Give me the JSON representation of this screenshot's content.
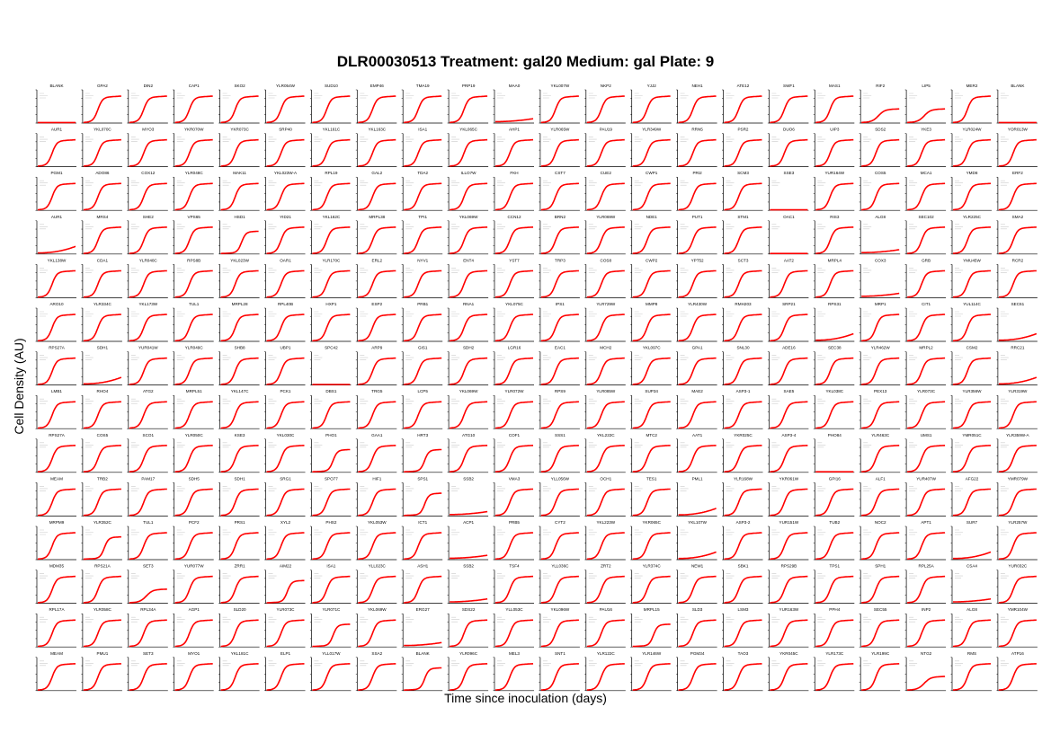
{
  "chart_data": {
    "type": "scatter",
    "title": "DLR00030513 Treatment: gal20 Medium: gal Plate: 9",
    "xlabel": "Time since inoculation (days)",
    "ylabel": "Cell Density (AU)",
    "rows": 14,
    "cols": 22,
    "series_color": "#ff0000",
    "curve_shapes": {
      "S": "fast sigmoid growth, early onset, saturating high",
      "D": "delayed sigmoid growth, later onset, saturating high",
      "L": "sigmoid growth saturating at lower density",
      "F": "flat, very low growth",
      "N": "no growth",
      "G": "weak gradual late growth"
    },
    "panels": [
      [
        "BLANK",
        "N"
      ],
      [
        "GPA2",
        "S"
      ],
      [
        "DIN2",
        "S"
      ],
      [
        "CAP1",
        "S"
      ],
      [
        "SKO2",
        "S"
      ],
      [
        "YLR054W",
        "S"
      ],
      [
        "SUD10",
        "S"
      ],
      [
        "EMP46",
        "S"
      ],
      [
        "TMA19",
        "S"
      ],
      [
        "PRP19",
        "S"
      ],
      [
        "MAA0",
        "F"
      ],
      [
        "YKL007W",
        "S"
      ],
      [
        "NKP2",
        "S"
      ],
      [
        "YJJ2",
        "S"
      ],
      [
        "NEH1",
        "S"
      ],
      [
        "ATE12",
        "S"
      ],
      [
        "SWF1",
        "S"
      ],
      [
        "MAS1",
        "S"
      ],
      [
        "RIF2",
        "L"
      ],
      [
        "LIP5",
        "L"
      ],
      [
        "MER2",
        "S"
      ],
      [
        "BLANK",
        "N"
      ],
      [
        "AUR1",
        "S"
      ],
      [
        "YKL070C",
        "S"
      ],
      [
        "MYO3",
        "S"
      ],
      [
        "YKR070W",
        "S"
      ],
      [
        "YKR073C",
        "S"
      ],
      [
        "SRP40",
        "S"
      ],
      [
        "YKL161C",
        "S"
      ],
      [
        "YKL163C",
        "S"
      ],
      [
        "ISA1",
        "S"
      ],
      [
        "YKL065C",
        "S"
      ],
      [
        "AHP1",
        "S"
      ],
      [
        "YLR065W",
        "S"
      ],
      [
        "PAU19",
        "S"
      ],
      [
        "YLR349W",
        "S"
      ],
      [
        "RRN5",
        "S"
      ],
      [
        "PSR2",
        "S"
      ],
      [
        "DUO6",
        "S"
      ],
      [
        "UIP3",
        "S"
      ],
      [
        "SDS2",
        "S"
      ],
      [
        "YKE3",
        "S"
      ],
      [
        "YLR024W",
        "S"
      ],
      [
        "YOR013W",
        "S"
      ],
      [
        "PGM1",
        "S"
      ],
      [
        "ADO86",
        "S"
      ],
      [
        "COX12",
        "S"
      ],
      [
        "YLR048C",
        "S"
      ],
      [
        "MAK11",
        "S"
      ],
      [
        "YKL023W-A",
        "S"
      ],
      [
        "RPL19",
        "S"
      ],
      [
        "GAL2",
        "S"
      ],
      [
        "TDA2",
        "S"
      ],
      [
        "ILLO7W",
        "S"
      ],
      [
        "FKH",
        "S"
      ],
      [
        "CST7",
        "S"
      ],
      [
        "CUE2",
        "S"
      ],
      [
        "CWP1",
        "S"
      ],
      [
        "PRI2",
        "S"
      ],
      [
        "SCM3",
        "S"
      ],
      [
        "SSE3",
        "N"
      ],
      [
        "YUR164W",
        "S"
      ],
      [
        "COS5",
        "S"
      ],
      [
        "MCA1",
        "S"
      ],
      [
        "YMD8",
        "S"
      ],
      [
        "ERF2",
        "S"
      ],
      [
        "AUR1",
        "G"
      ],
      [
        "MRS4",
        "S"
      ],
      [
        "SHE2",
        "S"
      ],
      [
        "VPS65",
        "S"
      ],
      [
        "HSD1",
        "D"
      ],
      [
        "YID21",
        "S"
      ],
      [
        "YKL162C",
        "S"
      ],
      [
        "MRPL38",
        "S"
      ],
      [
        "TPI1",
        "S"
      ],
      [
        "YKL069W",
        "S"
      ],
      [
        "CCN12",
        "S"
      ],
      [
        "BRN2",
        "S"
      ],
      [
        "YLR069W",
        "S"
      ],
      [
        "NDE1",
        "S"
      ],
      [
        "PUT1",
        "S"
      ],
      [
        "STM1",
        "S"
      ],
      [
        "OAC1",
        "N"
      ],
      [
        "RIS3",
        "S"
      ],
      [
        "ALG8",
        "F"
      ],
      [
        "SEC102",
        "S"
      ],
      [
        "YLR225C",
        "S"
      ],
      [
        "SMA2",
        "S"
      ],
      [
        "YKL138W",
        "S"
      ],
      [
        "CDA1",
        "S"
      ],
      [
        "YLR040C",
        "S"
      ],
      [
        "RPS8B",
        "S"
      ],
      [
        "YKL023W",
        "S"
      ],
      [
        "OAR1",
        "S"
      ],
      [
        "YLR170C",
        "S"
      ],
      [
        "ERL2",
        "S"
      ],
      [
        "NYV1",
        "S"
      ],
      [
        "ENT4",
        "S"
      ],
      [
        "YST7",
        "S"
      ],
      [
        "TRP3",
        "S"
      ],
      [
        "COS8",
        "S"
      ],
      [
        "CWP2",
        "S"
      ],
      [
        "YPT52",
        "S"
      ],
      [
        "SCT3",
        "S"
      ],
      [
        "AAT2",
        "S"
      ],
      [
        "MRPL4",
        "S"
      ],
      [
        "COX3",
        "F"
      ],
      [
        "GRB",
        "S"
      ],
      [
        "YMU45W",
        "S"
      ],
      [
        "RCR2",
        "S"
      ],
      [
        "ARO10",
        "S"
      ],
      [
        "YLR334C",
        "S"
      ],
      [
        "YKL173W",
        "S"
      ],
      [
        "TUL1",
        "S"
      ],
      [
        "MRPL28",
        "S"
      ],
      [
        "RPL40B",
        "S"
      ],
      [
        "HXP1",
        "S"
      ],
      [
        "ESP2",
        "S"
      ],
      [
        "PRB1",
        "S"
      ],
      [
        "RNA1",
        "S"
      ],
      [
        "YKL075C",
        "S"
      ],
      [
        "IPS1",
        "S"
      ],
      [
        "YLR729W",
        "S"
      ],
      [
        "MMP8",
        "S"
      ],
      [
        "YLR430W",
        "S"
      ],
      [
        "RMH203",
        "S"
      ],
      [
        "SRP21",
        "S"
      ],
      [
        "RPS31",
        "G"
      ],
      [
        "MRP1",
        "S"
      ],
      [
        "CIT1",
        "S"
      ],
      [
        "YUL114C",
        "S"
      ],
      [
        "SEC61",
        "G"
      ],
      [
        "RPS27A",
        "S"
      ],
      [
        "SDH1",
        "G"
      ],
      [
        "YUR041W",
        "S"
      ],
      [
        "YLR049C",
        "S"
      ],
      [
        "SHB8",
        "S"
      ],
      [
        "UBP1",
        "S"
      ],
      [
        "SPC42",
        "N"
      ],
      [
        "ARP9",
        "S"
      ],
      [
        "GIS1",
        "S"
      ],
      [
        "SDH2",
        "S"
      ],
      [
        "LGR16",
        "S"
      ],
      [
        "EAC1",
        "S"
      ],
      [
        "MCH2",
        "S"
      ],
      [
        "YKL097C",
        "S"
      ],
      [
        "GPA1",
        "S"
      ],
      [
        "SNL30",
        "S"
      ],
      [
        "ADE16",
        "S"
      ],
      [
        "SEC38",
        "S"
      ],
      [
        "YLR462W",
        "S"
      ],
      [
        "MRPL2",
        "S"
      ],
      [
        "CSM2",
        "S"
      ],
      [
        "RRC21",
        "G"
      ],
      [
        "LMB1",
        "S"
      ],
      [
        "RHO4",
        "S"
      ],
      [
        "ATG2",
        "S"
      ],
      [
        "MRPL51",
        "S"
      ],
      [
        "YKL147C",
        "S"
      ],
      [
        "PCK1",
        "S"
      ],
      [
        "DBS1",
        "S"
      ],
      [
        "TRG5",
        "S"
      ],
      [
        "LCP5",
        "S"
      ],
      [
        "YKL069W",
        "S"
      ],
      [
        "YLR072W",
        "S"
      ],
      [
        "RPS9",
        "S"
      ],
      [
        "YLR085W",
        "S"
      ],
      [
        "SUP34",
        "S"
      ],
      [
        "MAE2",
        "S"
      ],
      [
        "ASP3-1",
        "S"
      ],
      [
        "SAE5",
        "S"
      ],
      [
        "YKL038C",
        "S"
      ],
      [
        "PEX13",
        "S"
      ],
      [
        "YLR073C",
        "S"
      ],
      [
        "YLR356W",
        "S"
      ],
      [
        "YLR319W",
        "S"
      ],
      [
        "RPS27A",
        "S"
      ],
      [
        "COS5",
        "S"
      ],
      [
        "SCO1",
        "S"
      ],
      [
        "YLR050C",
        "S"
      ],
      [
        "KSE3",
        "S"
      ],
      [
        "YKL030C",
        "S"
      ],
      [
        "PHO1",
        "D"
      ],
      [
        "GAA1",
        "S"
      ],
      [
        "HRT3",
        "D"
      ],
      [
        "ATG10",
        "S"
      ],
      [
        "COF1",
        "S"
      ],
      [
        "SSS1",
        "S"
      ],
      [
        "YKL222C",
        "S"
      ],
      [
        "MTC2",
        "S"
      ],
      [
        "AAT1",
        "S"
      ],
      [
        "YKR025C",
        "S"
      ],
      [
        "ASP3-4",
        "S"
      ],
      [
        "PHO84",
        "N"
      ],
      [
        "YLR463C",
        "S"
      ],
      [
        "UMS1",
        "S"
      ],
      [
        "YMR051C",
        "S"
      ],
      [
        "YLR359W-A",
        "S"
      ],
      [
        "MEAM",
        "S"
      ],
      [
        "TRB2",
        "S"
      ],
      [
        "PAM17",
        "S"
      ],
      [
        "SDH5",
        "S"
      ],
      [
        "SDH1",
        "S"
      ],
      [
        "SRG1",
        "S"
      ],
      [
        "SPO77",
        "S"
      ],
      [
        "HIF1",
        "S"
      ],
      [
        "SPS1",
        "D"
      ],
      [
        "SSB2",
        "F"
      ],
      [
        "VMA3",
        "S"
      ],
      [
        "YLL056W",
        "S"
      ],
      [
        "OCH1",
        "S"
      ],
      [
        "TES1",
        "S"
      ],
      [
        "PML1",
        "G"
      ],
      [
        "YLR168W",
        "S"
      ],
      [
        "YKR061W",
        "S"
      ],
      [
        "GPI16",
        "S"
      ],
      [
        "ALF1",
        "S"
      ],
      [
        "YUR407W",
        "S"
      ],
      [
        "AFG22",
        "S"
      ],
      [
        "YMR079W",
        "S"
      ],
      [
        "MRPM9",
        "S"
      ],
      [
        "YLR352C",
        "D"
      ],
      [
        "TUL1",
        "S"
      ],
      [
        "PCF2",
        "S"
      ],
      [
        "PRS1",
        "S"
      ],
      [
        "XYL2",
        "S"
      ],
      [
        "PHS2",
        "S"
      ],
      [
        "YKL053W",
        "S"
      ],
      [
        "ICT1",
        "S"
      ],
      [
        "ACP1",
        "F"
      ],
      [
        "PRB5",
        "S"
      ],
      [
        "CYT2",
        "S"
      ],
      [
        "YKL223W",
        "S"
      ],
      [
        "YKR065C",
        "S"
      ],
      [
        "YKL107W",
        "G"
      ],
      [
        "ASP3-2",
        "S"
      ],
      [
        "YUR151W",
        "S"
      ],
      [
        "TUB2",
        "S"
      ],
      [
        "NOC2",
        "S"
      ],
      [
        "APT1",
        "S"
      ],
      [
        "SUR7",
        "G"
      ],
      [
        "YLR257W",
        "S"
      ],
      [
        "MDM35",
        "S"
      ],
      [
        "RPS21A",
        "S"
      ],
      [
        "SET3",
        "L"
      ],
      [
        "YUR077W",
        "S"
      ],
      [
        "ZRR1",
        "S"
      ],
      [
        "AIM22",
        "D"
      ],
      [
        "ISA1",
        "S"
      ],
      [
        "YLL023C",
        "S"
      ],
      [
        "ASH1",
        "S"
      ],
      [
        "SSB2",
        "F"
      ],
      [
        "TSF4",
        "S"
      ],
      [
        "YLL036C",
        "S"
      ],
      [
        "ZRT2",
        "S"
      ],
      [
        "YLR374C",
        "S"
      ],
      [
        "NEW1",
        "S"
      ],
      [
        "SBK1",
        "S"
      ],
      [
        "RPS29B",
        "S"
      ],
      [
        "TPS1",
        "S"
      ],
      [
        "SPH1",
        "S"
      ],
      [
        "RPL25A",
        "S"
      ],
      [
        "CSA4",
        "F"
      ],
      [
        "YUR032C",
        "S"
      ],
      [
        "RPL17A",
        "S"
      ],
      [
        "YLR058C",
        "S"
      ],
      [
        "RPL34A",
        "S"
      ],
      [
        "AGP1",
        "S"
      ],
      [
        "SLD20",
        "S"
      ],
      [
        "YLR073C",
        "S"
      ],
      [
        "YLR071C",
        "D"
      ],
      [
        "YKL069W",
        "S"
      ],
      [
        "ERG27",
        "F"
      ],
      [
        "SDS22",
        "S"
      ],
      [
        "YLL053C",
        "S"
      ],
      [
        "YKL096W",
        "S"
      ],
      [
        "PAU16",
        "S"
      ],
      [
        "MRPL15",
        "D"
      ],
      [
        "SLD3",
        "S"
      ],
      [
        "LSM3",
        "S"
      ],
      [
        "YUR163W",
        "S"
      ],
      [
        "PPH4",
        "S"
      ],
      [
        "SEC55",
        "S"
      ],
      [
        "INP2",
        "S"
      ],
      [
        "ALG8",
        "S"
      ],
      [
        "YMR104W",
        "S"
      ],
      [
        "MEAM",
        "S"
      ],
      [
        "PMU1",
        "S"
      ],
      [
        "SET3",
        "S"
      ],
      [
        "MYO1",
        "S"
      ],
      [
        "YKL181C",
        "S"
      ],
      [
        "ELP1",
        "S"
      ],
      [
        "YLL017W",
        "S"
      ],
      [
        "SSA2",
        "S"
      ],
      [
        "BLANK",
        "D"
      ],
      [
        "YLR096C",
        "S"
      ],
      [
        "MEL3",
        "S"
      ],
      [
        "SNT1",
        "S"
      ],
      [
        "YLR122C",
        "S"
      ],
      [
        "YLR146W",
        "S"
      ],
      [
        "PGM34",
        "S"
      ],
      [
        "TAO3",
        "S"
      ],
      [
        "YKR045C",
        "S"
      ],
      [
        "YLR173C",
        "S"
      ],
      [
        "YLR199C",
        "S"
      ],
      [
        "NTG2",
        "L"
      ],
      [
        "RMS",
        "S"
      ],
      [
        "ATP16",
        "S"
      ]
    ]
  }
}
